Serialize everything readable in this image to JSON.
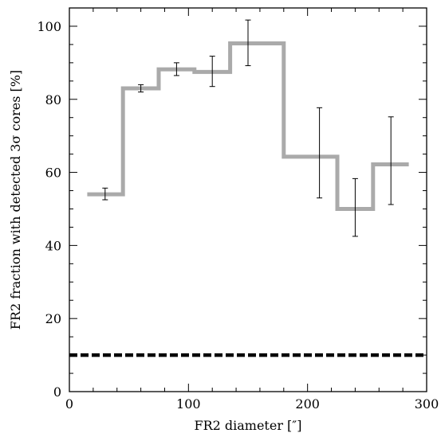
{
  "chart_data": {
    "type": "line",
    "xlabel": "FR2 diameter  [″]",
    "ylabel": "FR2 fraction with detected 3σ cores [%]",
    "xlim": [
      0,
      300
    ],
    "ylim": [
      0,
      105
    ],
    "xticks": [
      0,
      100,
      200,
      300
    ],
    "yticks": [
      0,
      20,
      40,
      60,
      80,
      100
    ],
    "grid": false,
    "series": [
      {
        "style": "histogram-step",
        "color": "#aaaaaa",
        "bins": [
          {
            "x0": 15,
            "x1": 45,
            "y": 54
          },
          {
            "x0": 45,
            "x1": 75,
            "y": 83
          },
          {
            "x0": 75,
            "x1": 105,
            "y": 88.2
          },
          {
            "x0": 105,
            "x1": 135,
            "y": 87.5
          },
          {
            "x0": 135,
            "x1": 180,
            "y": 95.3
          },
          {
            "x0": 180,
            "x1": 225,
            "y": 64.3
          },
          {
            "x0": 225,
            "x1": 255,
            "y": 50
          },
          {
            "x0": 255,
            "x1": 285,
            "y": 62.2
          }
        ]
      }
    ],
    "error_bars": [
      {
        "x": 30,
        "low": 52.5,
        "high": 55.7
      },
      {
        "x": 60,
        "low": 82,
        "high": 84
      },
      {
        "x": 90,
        "low": 86.5,
        "high": 90
      },
      {
        "x": 120,
        "low": 83.5,
        "high": 91.8
      },
      {
        "x": 150,
        "low": 89.2,
        "high": 101.7
      },
      {
        "x": 210,
        "low": 53,
        "high": 77.7
      },
      {
        "x": 240,
        "low": 42.5,
        "high": 58.3
      },
      {
        "x": 270,
        "low": 51.2,
        "high": 75.2
      }
    ],
    "reference_line": {
      "y": 10,
      "style": "dashed",
      "color": "#000000"
    }
  }
}
